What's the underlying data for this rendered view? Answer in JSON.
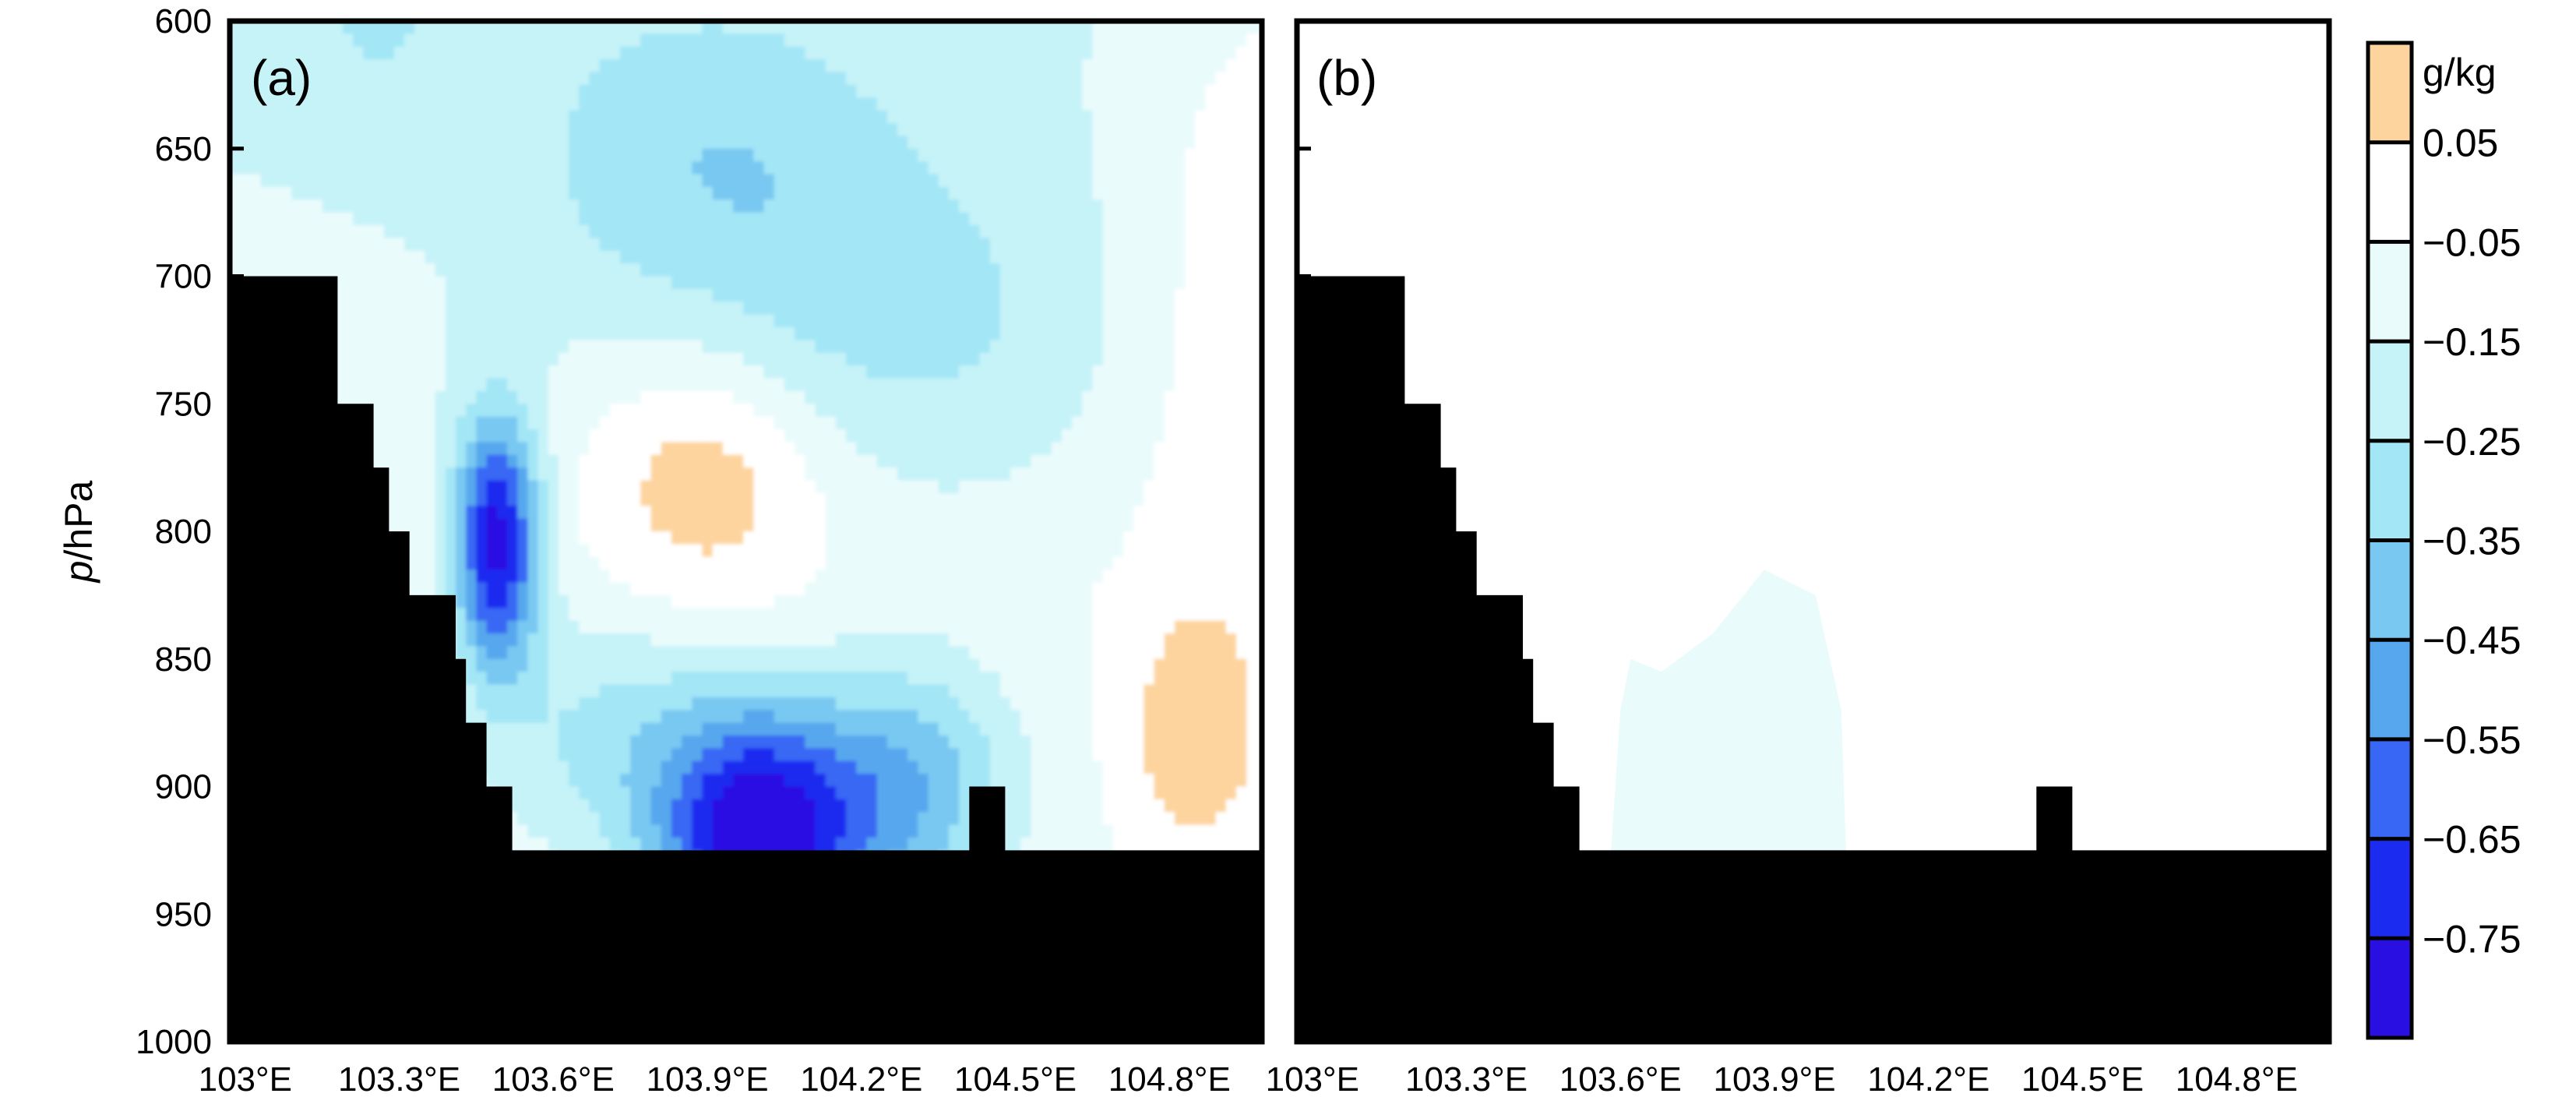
{
  "chart_data": [
    {
      "type": "heatmap",
      "panel_label": "(a)",
      "ylabel_italic": "p",
      "ylabel_unit": "/hPa",
      "yticks": [
        600,
        650,
        700,
        750,
        800,
        850,
        900,
        950,
        1000
      ],
      "ylim": [
        600,
        1000
      ],
      "ytick_labels": [
        "600",
        "650",
        "700",
        "750",
        "800",
        "850",
        "900",
        "950",
        "1000"
      ],
      "xticks": [
        103.0,
        103.3,
        103.6,
        103.9,
        104.2,
        104.5,
        104.8
      ],
      "xlim": [
        102.97,
        104.98
      ],
      "xtick_labels": [
        "103°E",
        "103.3°E",
        "103.6°E",
        "103.9°E",
        "104.2°E",
        "104.5°E",
        "104.8°E"
      ],
      "terrain_color": "#000000",
      "terrain_profile": [
        {
          "x": 103.0,
          "p": 700
        },
        {
          "x": 103.18,
          "p": 750
        },
        {
          "x": 103.25,
          "p": 775
        },
        {
          "x": 103.28,
          "p": 800
        },
        {
          "x": 103.3,
          "p": 825
        },
        {
          "x": 103.41,
          "p": 850
        },
        {
          "x": 103.43,
          "p": 875
        },
        {
          "x": 103.47,
          "p": 900
        },
        {
          "x": 103.52,
          "p": 925
        },
        {
          "x": 104.43,
          "p": 900
        },
        {
          "x": 104.5,
          "p": 925
        }
      ],
      "field_description": "Moisture difference; mostly -0.05 to -0.25 g/kg aloft, minimum below -0.65 g/kg near 103.5°E 800hPa and 104.0°E 920hPa, small positive patch (>0.05) near 103.9°E 770hPa and 104.85°E 880hPa",
      "features": [
        {
          "x": 103.3,
          "p": 610,
          "value": -0.1
        },
        {
          "x": 103.9,
          "p": 660,
          "value": -0.3
        },
        {
          "x": 103.5,
          "p": 790,
          "value": -0.5
        },
        {
          "x": 103.5,
          "p": 800,
          "value": -0.7
        },
        {
          "x": 103.92,
          "p": 770,
          "value": 0.1
        },
        {
          "x": 103.75,
          "p": 780,
          "value": 0.1
        },
        {
          "x": 104.0,
          "p": 905,
          "value": -0.65
        },
        {
          "x": 104.0,
          "p": 915,
          "value": -0.8
        },
        {
          "x": 104.32,
          "p": 880,
          "value": -0.5
        },
        {
          "x": 104.85,
          "p": 880,
          "value": 0.1
        }
      ]
    },
    {
      "type": "heatmap",
      "panel_label": "(b)",
      "xticks": [
        103.0,
        103.3,
        103.6,
        103.9,
        104.2,
        104.5,
        104.8
      ],
      "xtick_labels": [
        "103°E",
        "103.3°E",
        "103.6°E",
        "103.9°E",
        "104.2°E",
        "104.5°E",
        "104.8°E"
      ],
      "ylim": [
        600,
        1000
      ],
      "terrain_color": "#000000",
      "field_description": "Nearly uniform -0.05 to 0.05 g/kg; weak -0.05 to -0.15 region between 103.6°E and 104.0°E below ~830hPa",
      "features": [
        {
          "x": 103.85,
          "p": 880,
          "value": -0.1
        }
      ]
    }
  ],
  "colorbar": {
    "unit": "g/kg",
    "levels": [
      "0.05",
      "−0.05",
      "−0.15",
      "−0.25",
      "−0.35",
      "−0.45",
      "−0.55",
      "−0.65",
      "−0.75"
    ],
    "colors": [
      "#FDD49E",
      "#FFFFFF",
      "#EAFBFC",
      "#C6F3F8",
      "#A3E6F6",
      "#79C8F2",
      "#56A7EE",
      "#3767F4",
      "#1B2BF0",
      "#2A0FE2"
    ]
  }
}
